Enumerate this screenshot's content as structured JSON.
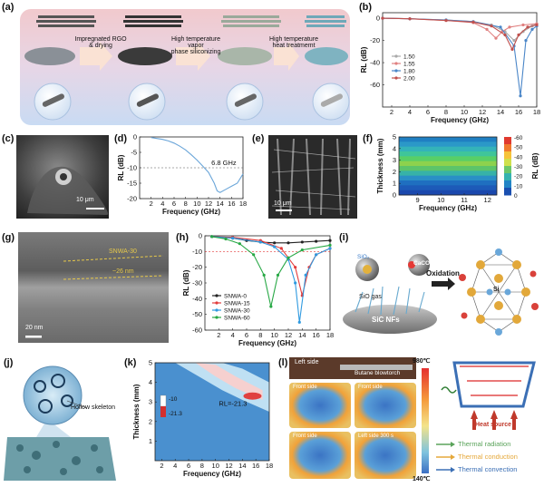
{
  "panels": {
    "a": {
      "label": "(a)",
      "steps": [
        "Impregnated RGO\n& drying",
        "High temperature vapor\nphase siliconizing",
        "High temperature\nheat treatmemt"
      ]
    },
    "b": {
      "label": "(b)"
    },
    "c": {
      "label": "(c)",
      "scalebar": "10 μm"
    },
    "d": {
      "label": "(d)",
      "annotation": "6.8 GHz"
    },
    "e": {
      "label": "(e)",
      "scalebar": "10 μm"
    },
    "f": {
      "label": "(f)"
    },
    "g": {
      "label": "(g)",
      "scalebar": "20 nm",
      "layer1": "SNWA-30",
      "layer2": "~26 nm"
    },
    "h": {
      "label": "(h)"
    },
    "i": {
      "label": "(i)",
      "sio2": "SiO₂",
      "cao": "CaCO",
      "sio_gas": "SiO gas",
      "substrate": "SiC NFs",
      "arrow_label": "Oxidation",
      "atom": "Si"
    },
    "j": {
      "label": "(j)",
      "callout": "Hollow skeleton"
    },
    "k": {
      "label": "(k)",
      "annotation": "RL=-21.3",
      "cbar": [
        "-10",
        "-21.3"
      ]
    },
    "l": {
      "label": "(l)",
      "left_side": "Left side",
      "torch": "Butane blowtorch",
      "tmax": "980℃",
      "tmin": "140℃",
      "thumbs": [
        "Front side",
        "Front side",
        "Front side",
        "Left side   300 s"
      ],
      "heat_source": "Heat source",
      "legend": [
        "Thermal radiation",
        "Thermal conduction",
        "Thermal convection"
      ]
    }
  },
  "chart_data": [
    {
      "panel": "b",
      "type": "line",
      "xlabel": "Frequency (GHz)",
      "ylabel": "RL (dB)",
      "xlim": [
        1,
        18
      ],
      "ylim": [
        -80,
        5
      ],
      "xticks": [
        2,
        4,
        6,
        8,
        10,
        12,
        14,
        16,
        18
      ],
      "yticks": [
        0,
        -20,
        -40,
        -60
      ],
      "legend": [
        "1.50",
        "1.55",
        "1.80",
        "2.00"
      ],
      "colors": [
        "#a9a9a9",
        "#e08080",
        "#4a86c8",
        "#c0504d"
      ],
      "series": [
        {
          "name": "1.50",
          "x": [
            1,
            4,
            8,
            11,
            13,
            14.5,
            15.5,
            16.5,
            17.5,
            18
          ],
          "values": [
            0,
            -0.5,
            -1.5,
            -3,
            -6,
            -12,
            -20,
            -12,
            -7,
            -5
          ]
        },
        {
          "name": "1.55",
          "x": [
            1,
            4,
            8,
            11,
            12.5,
            13.5,
            14.2,
            15,
            16.5,
            18
          ],
          "values": [
            0,
            -0.5,
            -2,
            -4,
            -10,
            -18,
            -12,
            -8,
            -6,
            -5
          ]
        },
        {
          "name": "1.80",
          "x": [
            1,
            4,
            8,
            11,
            14,
            15.5,
            16.2,
            16.8,
            17.5,
            18
          ],
          "values": [
            0,
            -0.5,
            -1.5,
            -3,
            -8,
            -25,
            -70,
            -20,
            -10,
            -7
          ]
        },
        {
          "name": "2.00",
          "x": [
            1,
            4,
            8,
            11,
            13,
            14.5,
            15.3,
            16,
            17,
            18
          ],
          "values": [
            0,
            -0.5,
            -2,
            -3.5,
            -7,
            -15,
            -28,
            -15,
            -8,
            -6
          ]
        }
      ]
    },
    {
      "panel": "d",
      "type": "line",
      "xlabel": "Frequency (GHz)",
      "ylabel": "RL (dB)",
      "xlim": [
        0,
        18
      ],
      "ylim": [
        -20,
        0
      ],
      "xticks": [
        2,
        4,
        6,
        8,
        10,
        12,
        14,
        16,
        18
      ],
      "yticks": [
        0,
        -5,
        -10,
        -15,
        -20
      ],
      "series": [
        {
          "name": "",
          "x": [
            2,
            4,
            5,
            6,
            7,
            8,
            9,
            10,
            11,
            12,
            13,
            13.5,
            14,
            15,
            16,
            17,
            18
          ],
          "values": [
            -0.2,
            -0.8,
            -1.3,
            -2,
            -3,
            -4.2,
            -5.8,
            -7.5,
            -9.5,
            -11.5,
            -15,
            -17.5,
            -18,
            -17,
            -16,
            -15,
            -12
          ]
        }
      ]
    },
    {
      "panel": "f",
      "type": "heatmap",
      "xlabel": "Frequency (GHz)",
      "ylabel": "Thickness (mm)",
      "xlim": [
        8.2,
        12.4
      ],
      "ylim": [
        0,
        5
      ],
      "xticks": [
        9,
        10,
        11,
        12
      ],
      "yticks": [
        0,
        1,
        2,
        3,
        4,
        5
      ],
      "cbar_label": "RL (dB)",
      "cbar_ticks": [
        -60,
        -50,
        -40,
        -30,
        -20,
        -10,
        0
      ]
    },
    {
      "panel": "h",
      "type": "line",
      "xlabel": "Frequency (GHz)",
      "ylabel": "RL (dB)",
      "xlim": [
        0,
        18
      ],
      "ylim": [
        -60,
        0
      ],
      "xticks": [
        2,
        4,
        6,
        8,
        10,
        12,
        14,
        16,
        18
      ],
      "yticks": [
        0,
        -10,
        -20,
        -30,
        -40,
        -50,
        -60
      ],
      "legend": [
        "SNWA-0",
        "SNWA-15",
        "SNWA-30",
        "SNWA-60"
      ],
      "colors": [
        "#222222",
        "#e23b3b",
        "#2f9ae0",
        "#27a845"
      ],
      "series": [
        {
          "name": "SNWA-0",
          "x": [
            1,
            4,
            6,
            8,
            10,
            12,
            14,
            16,
            18
          ],
          "values": [
            -0.5,
            -1.5,
            -3,
            -4,
            -4.5,
            -4.5,
            -4,
            -3.5,
            -3
          ]
        },
        {
          "name": "SNWA-15",
          "x": [
            1,
            4,
            8,
            11,
            13,
            14,
            15,
            16,
            18
          ],
          "values": [
            -0.5,
            -1,
            -3,
            -8,
            -20,
            -38,
            -20,
            -12,
            -8
          ]
        },
        {
          "name": "SNWA-30",
          "x": [
            1,
            4,
            8,
            10,
            12,
            13,
            13.6,
            14.5,
            16,
            18
          ],
          "values": [
            -0.5,
            -1.5,
            -4,
            -7,
            -15,
            -30,
            -55,
            -25,
            -12,
            -8
          ]
        },
        {
          "name": "SNWA-60",
          "x": [
            1,
            3,
            5,
            7,
            8.5,
            9.5,
            10.5,
            12,
            14,
            18
          ],
          "values": [
            -0.5,
            -2,
            -5,
            -12,
            -25,
            -45,
            -25,
            -14,
            -9,
            -6
          ]
        }
      ]
    },
    {
      "panel": "k",
      "type": "heatmap",
      "xlabel": "Frequency (GHz)",
      "ylabel": "Thickness (mm)",
      "xlim": [
        1,
        18
      ],
      "ylim": [
        0,
        5
      ],
      "xticks": [
        2,
        4,
        6,
        8,
        10,
        12,
        14,
        16,
        18
      ],
      "yticks": [
        1,
        2,
        3,
        4,
        5
      ]
    }
  ]
}
